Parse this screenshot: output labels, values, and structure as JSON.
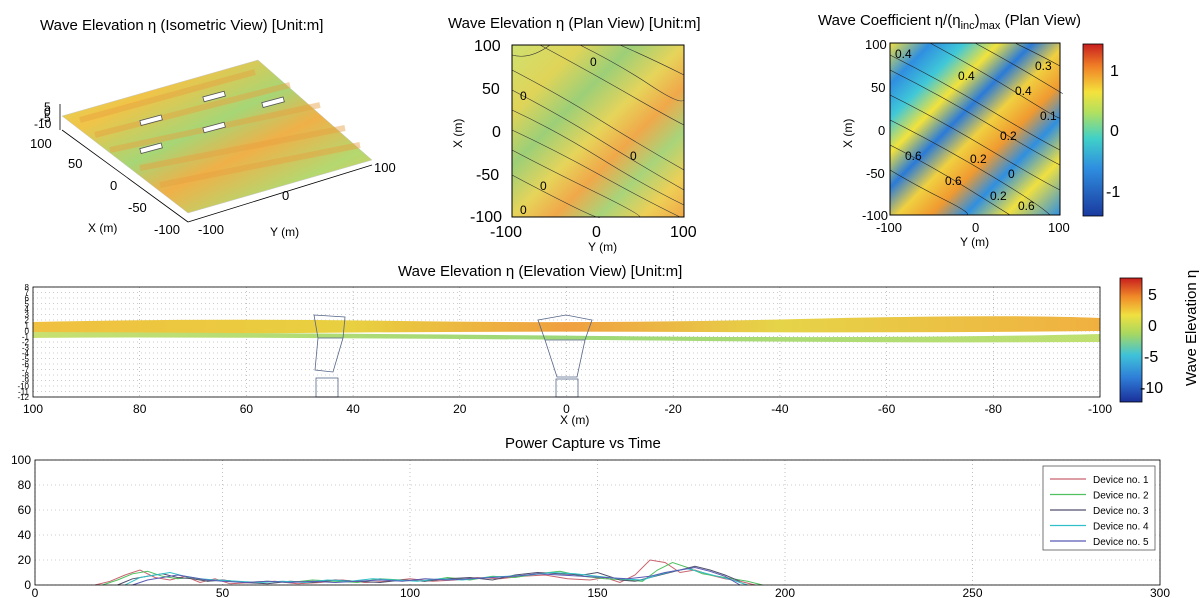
{
  "charts": {
    "iso": {
      "title": "Wave Elevation  η (Isometric View) [Unit:m]",
      "z_ticks": [
        "5",
        "0",
        "-5",
        "-10"
      ],
      "x_ticks": [
        "100",
        "50",
        "0",
        "-50",
        "-100"
      ],
      "y_ticks": [
        "-100",
        "0",
        "100"
      ],
      "xlabel": "X (m)",
      "ylabel": "Y (m)"
    },
    "plan": {
      "title": "Wave Elevation  η (Plan View) [Unit:m]",
      "y_ticks": [
        "100",
        "50",
        "0",
        "-50",
        "-100"
      ],
      "x_ticks": [
        "-100",
        "0",
        "100"
      ],
      "ylabel": "X (m)",
      "xlabel": "Y (m)",
      "contour_labels": [
        "0",
        "0",
        "0",
        "0",
        "0"
      ]
    },
    "coef": {
      "title": "Wave Coefficient  η/(η",
      "title_sub": "inc",
      "title_close": ")",
      "title_sub2": "max",
      "title_end": " (Plan View)",
      "y_ticks": [
        "100",
        "50",
        "0",
        "-50",
        "-100"
      ],
      "x_ticks": [
        "-100",
        "0",
        "100"
      ],
      "ylabel": "X (m)",
      "xlabel": "Y (m)",
      "colorbar_ticks": [
        "1",
        "0",
        "-1"
      ],
      "contour_labels": [
        "0.4",
        "0.4",
        "0.3",
        "0.1",
        "0.2",
        "0.2",
        "0.6",
        "0.6",
        "0",
        "0.2",
        "0.4",
        "0.6"
      ]
    },
    "elev": {
      "title": "Wave Elevation  η (Elevation View) [Unit:m]",
      "y_ticks": [
        "8",
        "7",
        "6",
        "5",
        "4",
        "3",
        "2",
        "1",
        "0",
        "-1",
        "-2",
        "-3",
        "-4",
        "-5",
        "-6",
        "-7",
        "-8",
        "-9",
        "-10",
        "-11",
        "-12"
      ],
      "x_ticks": [
        "100",
        "80",
        "60",
        "40",
        "20",
        "0",
        "-20",
        "-40",
        "-60",
        "-80",
        "-100"
      ],
      "xlabel": "X (m)",
      "colorbar_ticks": [
        "5",
        "0",
        "-5",
        "-10"
      ],
      "colorbar_label": "Wave Elevation  η"
    }
  },
  "chart_data": [
    {
      "type": "line",
      "title": "Power Capture vs Time",
      "xlim": [
        0,
        300
      ],
      "ylim": [
        0,
        100
      ],
      "x_ticks": [
        0,
        50,
        100,
        150,
        200,
        250,
        300
      ],
      "y_ticks": [
        0,
        20,
        40,
        60,
        80,
        100
      ],
      "grid": true,
      "legend_position": "top-right",
      "series": [
        {
          "name": "Device no. 1",
          "color": "#c8646e",
          "x": [
            16,
            20,
            24,
            28,
            32,
            36,
            40,
            44,
            48,
            52,
            58,
            64,
            70,
            76,
            82,
            88,
            94,
            100,
            106,
            112,
            118,
            124,
            130,
            136,
            142,
            148,
            152,
            156,
            160,
            164,
            168,
            172,
            176,
            180,
            184,
            188,
            192
          ],
          "y": [
            0,
            3,
            8,
            12,
            6,
            4,
            7,
            2,
            5,
            1,
            2,
            3,
            1,
            2,
            4,
            2,
            3,
            5,
            3,
            4,
            6,
            5,
            7,
            8,
            5,
            4,
            6,
            2,
            8,
            20,
            18,
            10,
            12,
            8,
            5,
            3,
            0
          ]
        },
        {
          "name": "Device no. 2",
          "color": "#50c060",
          "x": [
            18,
            22,
            26,
            30,
            34,
            38,
            42,
            46,
            50,
            56,
            62,
            68,
            74,
            80,
            86,
            92,
            98,
            104,
            110,
            116,
            122,
            128,
            134,
            140,
            146,
            152,
            158,
            162,
            166,
            170,
            174,
            178,
            182,
            186,
            190,
            194
          ],
          "y": [
            0,
            4,
            9,
            11,
            7,
            5,
            6,
            3,
            4,
            2,
            3,
            2,
            4,
            3,
            2,
            5,
            4,
            3,
            6,
            4,
            7,
            6,
            9,
            11,
            7,
            5,
            4,
            3,
            12,
            18,
            14,
            9,
            7,
            5,
            3,
            0
          ]
        },
        {
          "name": "Device no. 3",
          "color": "#50506e",
          "x": [
            22,
            26,
            30,
            34,
            38,
            42,
            46,
            50,
            56,
            62,
            68,
            74,
            80,
            86,
            92,
            98,
            104,
            110,
            116,
            122,
            128,
            134,
            140,
            146,
            150,
            156,
            160,
            164,
            168,
            172,
            176,
            180,
            184,
            188
          ],
          "y": [
            0,
            5,
            7,
            9,
            6,
            5,
            3,
            4,
            2,
            1,
            3,
            2,
            4,
            3,
            2,
            4,
            3,
            5,
            6,
            4,
            8,
            10,
            9,
            8,
            10,
            4,
            3,
            6,
            9,
            12,
            15,
            12,
            8,
            3
          ]
        },
        {
          "name": "Device no. 4",
          "color": "#30c0c8",
          "x": [
            24,
            28,
            32,
            36,
            40,
            44,
            48,
            54,
            60,
            66,
            72,
            78,
            84,
            90,
            96,
            102,
            108,
            114,
            120,
            126,
            132,
            138,
            144,
            150,
            156,
            162,
            166,
            170,
            174,
            178,
            182,
            186,
            190
          ],
          "y": [
            0,
            6,
            8,
            10,
            7,
            5,
            4,
            3,
            2,
            3,
            2,
            4,
            3,
            5,
            4,
            3,
            5,
            4,
            6,
            7,
            8,
            10,
            9,
            7,
            5,
            4,
            8,
            11,
            13,
            10,
            7,
            4,
            0
          ]
        },
        {
          "name": "Device no. 5",
          "color": "#5a5ab4",
          "x": [
            26,
            30,
            34,
            38,
            42,
            46,
            50,
            56,
            62,
            68,
            74,
            80,
            86,
            92,
            98,
            104,
            110,
            116,
            122,
            128,
            134,
            140,
            146,
            152,
            158,
            164,
            168,
            172,
            176,
            180,
            184,
            188
          ],
          "y": [
            0,
            4,
            6,
            8,
            6,
            4,
            3,
            2,
            3,
            2,
            3,
            2,
            3,
            4,
            3,
            5,
            4,
            5,
            6,
            7,
            9,
            8,
            7,
            6,
            5,
            7,
            10,
            12,
            14,
            11,
            7,
            0
          ]
        }
      ]
    }
  ]
}
